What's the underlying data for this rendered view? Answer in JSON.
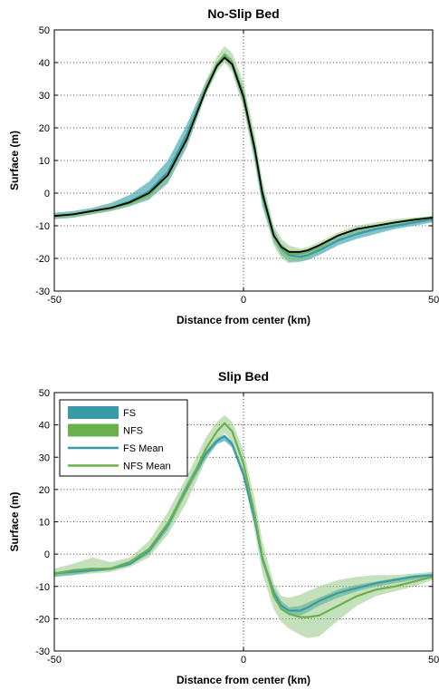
{
  "colors": {
    "fs": "#3a9aa8",
    "nfs": "#6ab04c",
    "fs_band": "#4aa9b3",
    "nfs_band": "#8cc47a",
    "black": "#000000"
  },
  "legend_placement": "top-left",
  "chart_data": [
    {
      "type": "area",
      "title": "No-Slip Bed",
      "xlabel": "Distance from center (km)",
      "ylabel": "Surface (m)",
      "xlim": [
        -50,
        50
      ],
      "ylim": [
        -30,
        50
      ],
      "grid": true,
      "xticks": [
        -50,
        0,
        50
      ],
      "yticks": [
        50,
        40,
        30,
        20,
        10,
        0,
        -10,
        -20,
        -30
      ],
      "x": [
        -50,
        -45,
        -40,
        -35,
        -30,
        -25,
        -20,
        -15,
        -10,
        -7,
        -5,
        -3,
        0,
        3,
        5,
        8,
        10,
        12,
        15,
        17,
        20,
        25,
        30,
        35,
        40,
        45,
        50
      ],
      "series": [
        {
          "name": "",
          "role": "fs_band",
          "upper": [
            -6,
            -5.5,
            -4.5,
            -3,
            -0.5,
            3.5,
            10,
            21,
            34,
            40,
            43,
            41,
            32,
            16,
            2,
            -11,
            -15.5,
            -17.5,
            -18.5,
            -18,
            -16,
            -13,
            -11,
            -10,
            -9,
            -8,
            -7
          ],
          "lower": [
            -8,
            -7.5,
            -6.5,
            -5.5,
            -4,
            -2,
            3,
            14,
            30,
            38,
            41,
            38,
            27,
            10,
            -4,
            -15,
            -19,
            -21,
            -21,
            -20.5,
            -19,
            -16,
            -14,
            -12.5,
            -11,
            -10,
            -9
          ]
        },
        {
          "name": "",
          "role": "nfs_band",
          "upper": [
            -6.5,
            -6,
            -5,
            -4,
            -2,
            1,
            7,
            18,
            34,
            42,
            45,
            43,
            34,
            18,
            4,
            -10,
            -14,
            -16,
            -17,
            -16.5,
            -15,
            -12,
            -10,
            -9,
            -8,
            -7.5,
            -7
          ],
          "lower": [
            -8,
            -7.5,
            -6.5,
            -5.5,
            -4,
            -1.5,
            4,
            15,
            30,
            37,
            40,
            37,
            26,
            9,
            -4,
            -16,
            -20,
            -21.5,
            -21,
            -20,
            -18,
            -14.5,
            -12,
            -11,
            -10,
            -9,
            -8.5
          ]
        },
        {
          "name": "",
          "role": "fs_mean",
          "values": [
            -7,
            -6.5,
            -5.5,
            -4.5,
            -2.5,
            0.5,
            6.5,
            18,
            32,
            39,
            42,
            39.5,
            29.5,
            13,
            -1,
            -13,
            -17,
            -19,
            -19.5,
            -19,
            -17.5,
            -14.5,
            -12.5,
            -11,
            -10,
            -9,
            -8
          ]
        },
        {
          "name": "",
          "role": "nfs_mean",
          "values": [
            -7,
            -6.5,
            -5.5,
            -4.5,
            -3,
            -0.5,
            5.5,
            16.5,
            32,
            39.5,
            42.5,
            40,
            30,
            13.5,
            0,
            -13,
            -17,
            -18.5,
            -18.5,
            -18,
            -16.5,
            -13,
            -11,
            -10,
            -9,
            -8,
            -7.5
          ]
        },
        {
          "name": "",
          "role": "ref_black",
          "values": [
            -7,
            -6.5,
            -5.5,
            -4.5,
            -2.8,
            0,
            5.5,
            16.5,
            31.5,
            39,
            41.5,
            39.5,
            29.5,
            13.5,
            0,
            -13,
            -16.5,
            -18,
            -18,
            -17.5,
            -16,
            -13,
            -11,
            -10,
            -9,
            -8.2,
            -7.5
          ]
        }
      ]
    },
    {
      "type": "area",
      "title": "Slip Bed",
      "xlabel": "Distance from center (km)",
      "ylabel": "Surface (m)",
      "xlim": [
        -50,
        50
      ],
      "ylim": [
        -30,
        50
      ],
      "grid": true,
      "xticks": [
        -50,
        0,
        50
      ],
      "yticks": [
        50,
        40,
        30,
        20,
        10,
        0,
        -10,
        -20,
        -30
      ],
      "x": [
        -50,
        -45,
        -40,
        -35,
        -30,
        -25,
        -20,
        -15,
        -10,
        -7,
        -5,
        -3,
        0,
        3,
        5,
        8,
        10,
        12,
        15,
        17,
        20,
        25,
        30,
        35,
        40,
        45,
        50
      ],
      "legend": [
        "FS",
        "NFS",
        "FS Mean",
        "NFS Mean"
      ],
      "series": [
        {
          "name": "FS",
          "role": "fs_band",
          "upper": [
            -5.5,
            -5,
            -4.5,
            -4,
            -2,
            2,
            10,
            22,
            32,
            36,
            37,
            35,
            26,
            12,
            0,
            -10.5,
            -14.5,
            -16.5,
            -16,
            -15,
            -13.5,
            -11,
            -9.5,
            -8.5,
            -7.5,
            -6.5,
            -6
          ],
          "lower": [
            -7,
            -6.5,
            -5.5,
            -5,
            -3.5,
            0,
            7.5,
            19,
            29.5,
            34,
            35,
            33,
            23.5,
            9,
            -3,
            -13,
            -17,
            -19,
            -19,
            -18,
            -16,
            -13.5,
            -11.5,
            -10,
            -9,
            -8,
            -7
          ]
        },
        {
          "name": "NFS",
          "role": "nfs_band",
          "upper": [
            -4.5,
            -3,
            -1,
            -2.5,
            -1,
            4,
            13,
            24,
            36,
            41,
            43,
            41,
            32,
            17,
            4,
            -9,
            -13,
            -13.5,
            -12.5,
            -11.5,
            -10,
            -8,
            -7,
            -6.5,
            -6.5,
            -6,
            -5.5
          ],
          "lower": [
            -7,
            -6.5,
            -6,
            -5.5,
            -4,
            -1,
            6,
            16,
            29,
            35,
            37.5,
            35,
            24,
            7,
            -6,
            -17,
            -21,
            -23,
            -25,
            -26,
            -25.5,
            -20.5,
            -16,
            -13,
            -11.5,
            -10,
            -8
          ]
        },
        {
          "name": "FS Mean",
          "role": "fs_mean",
          "values": [
            -6,
            -5.5,
            -5,
            -4.5,
            -3,
            1,
            9,
            20.5,
            31,
            35,
            36.5,
            34,
            24.5,
            10.5,
            -1.5,
            -12,
            -16,
            -17.5,
            -17.5,
            -16.5,
            -14.5,
            -12,
            -10.5,
            -9,
            -8,
            -7,
            -6.5
          ]
        },
        {
          "name": "NFS Mean",
          "role": "nfs_mean",
          "values": [
            -6,
            -5,
            -4.5,
            -4.5,
            -2.5,
            1.5,
            9.5,
            20,
            32.5,
            38,
            40.5,
            38,
            28,
            12,
            -1,
            -13,
            -17,
            -18.5,
            -19.5,
            -19.5,
            -19,
            -16,
            -13,
            -11,
            -10,
            -8.5,
            -7
          ]
        }
      ]
    }
  ]
}
